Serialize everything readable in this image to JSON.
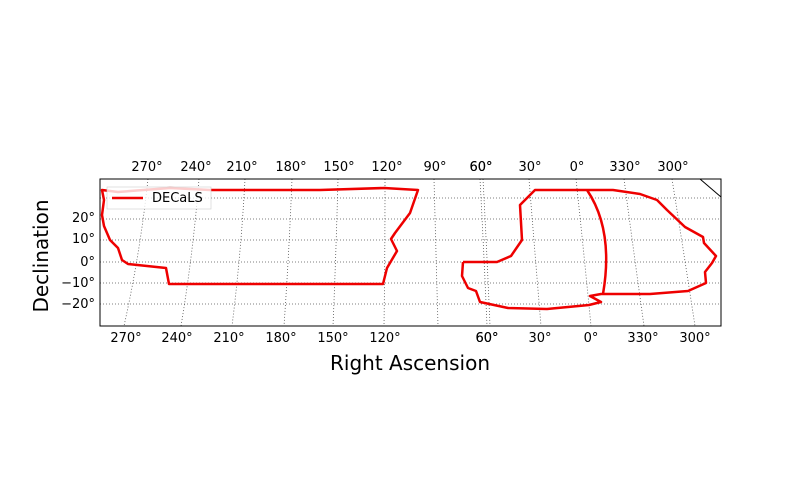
{
  "chart_data": {
    "type": "line",
    "xlabel": "Right Ascension",
    "ylabel": "Declination",
    "top_ra_ticks": [
      "270°",
      "240°",
      "210°",
      "180°",
      "150°",
      "120°",
      "90°",
      "60°",
      "60°",
      "30°",
      "0°",
      "330°",
      "300°"
    ],
    "bottom_ra_ticks": [
      "270°",
      "240°",
      "210°",
      "180°",
      "150°",
      "120°",
      "60°",
      "60°",
      "30°",
      "0°",
      "330°",
      "300°"
    ],
    "dec_ticks": [
      20,
      10,
      0,
      -10,
      -20
    ],
    "dec_tick_labels": [
      "20°",
      "10°",
      "0°",
      "−10°",
      "−20°"
    ],
    "ylim": [
      -30,
      40
    ],
    "grid": true,
    "legend": {
      "position": "upper-left",
      "entries": [
        "DECaLS"
      ]
    },
    "colors": {
      "footprint": "#ee0000",
      "grid": "#555555"
    },
    "series": [
      {
        "name": "DECaLS",
        "region": "ngc",
        "points": [
          [
            0,
            40
          ],
          [
            14,
            36
          ],
          [
            20,
            30
          ],
          [
            15,
            15
          ],
          [
            20,
            9
          ],
          [
            26,
            6
          ],
          [
            33,
            2
          ],
          [
            64,
            0
          ],
          [
            67,
            -10
          ],
          [
            209,
            -10
          ],
          [
            281,
            -10
          ],
          [
            285,
            0
          ],
          [
            295,
            7
          ],
          [
            292,
            10
          ],
          [
            297,
            16
          ],
          [
            310,
            23
          ],
          [
            318,
            36
          ],
          [
            284,
            36
          ],
          [
            160,
            35
          ]
        ]
      },
      {
        "name": "",
        "region": "sgc-north",
        "points": [
          [
            0,
            0
          ],
          [
            0,
            -5
          ],
          [
            5,
            -12
          ],
          [
            16,
            -18
          ],
          [
            40,
            -22
          ],
          [
            70,
            -23
          ],
          [
            500,
            -23
          ]
        ]
      },
      {
        "name": "",
        "region": "sgc-main",
        "points": [
          [
            63,
            0
          ],
          [
            80,
            0
          ],
          [
            80,
            -6
          ],
          [
            83,
            -12
          ],
          [
            94,
            -19
          ],
          [
            116,
            -24
          ],
          [
            156,
            -25
          ],
          [
            185,
            -23
          ],
          [
            196,
            -20
          ],
          [
            187,
            -16
          ],
          [
            205,
            -17
          ],
          [
            223,
            -15
          ],
          [
            254,
            -15
          ],
          [
            293,
            -14
          ],
          [
            310,
            -10
          ],
          [
            325,
            -3
          ],
          [
            323,
            0
          ],
          [
            316,
            7
          ],
          [
            301,
            10
          ],
          [
            293,
            18
          ],
          [
            280,
            24
          ],
          [
            265,
            31
          ],
          [
            244,
            34
          ],
          [
            214,
            36
          ],
          [
            173,
            36
          ],
          [
            137,
            36
          ],
          [
            133,
            32
          ],
          [
            136,
            20
          ],
          [
            138,
            10
          ],
          [
            133,
            3
          ],
          [
            120,
            0
          ]
        ]
      }
    ]
  }
}
